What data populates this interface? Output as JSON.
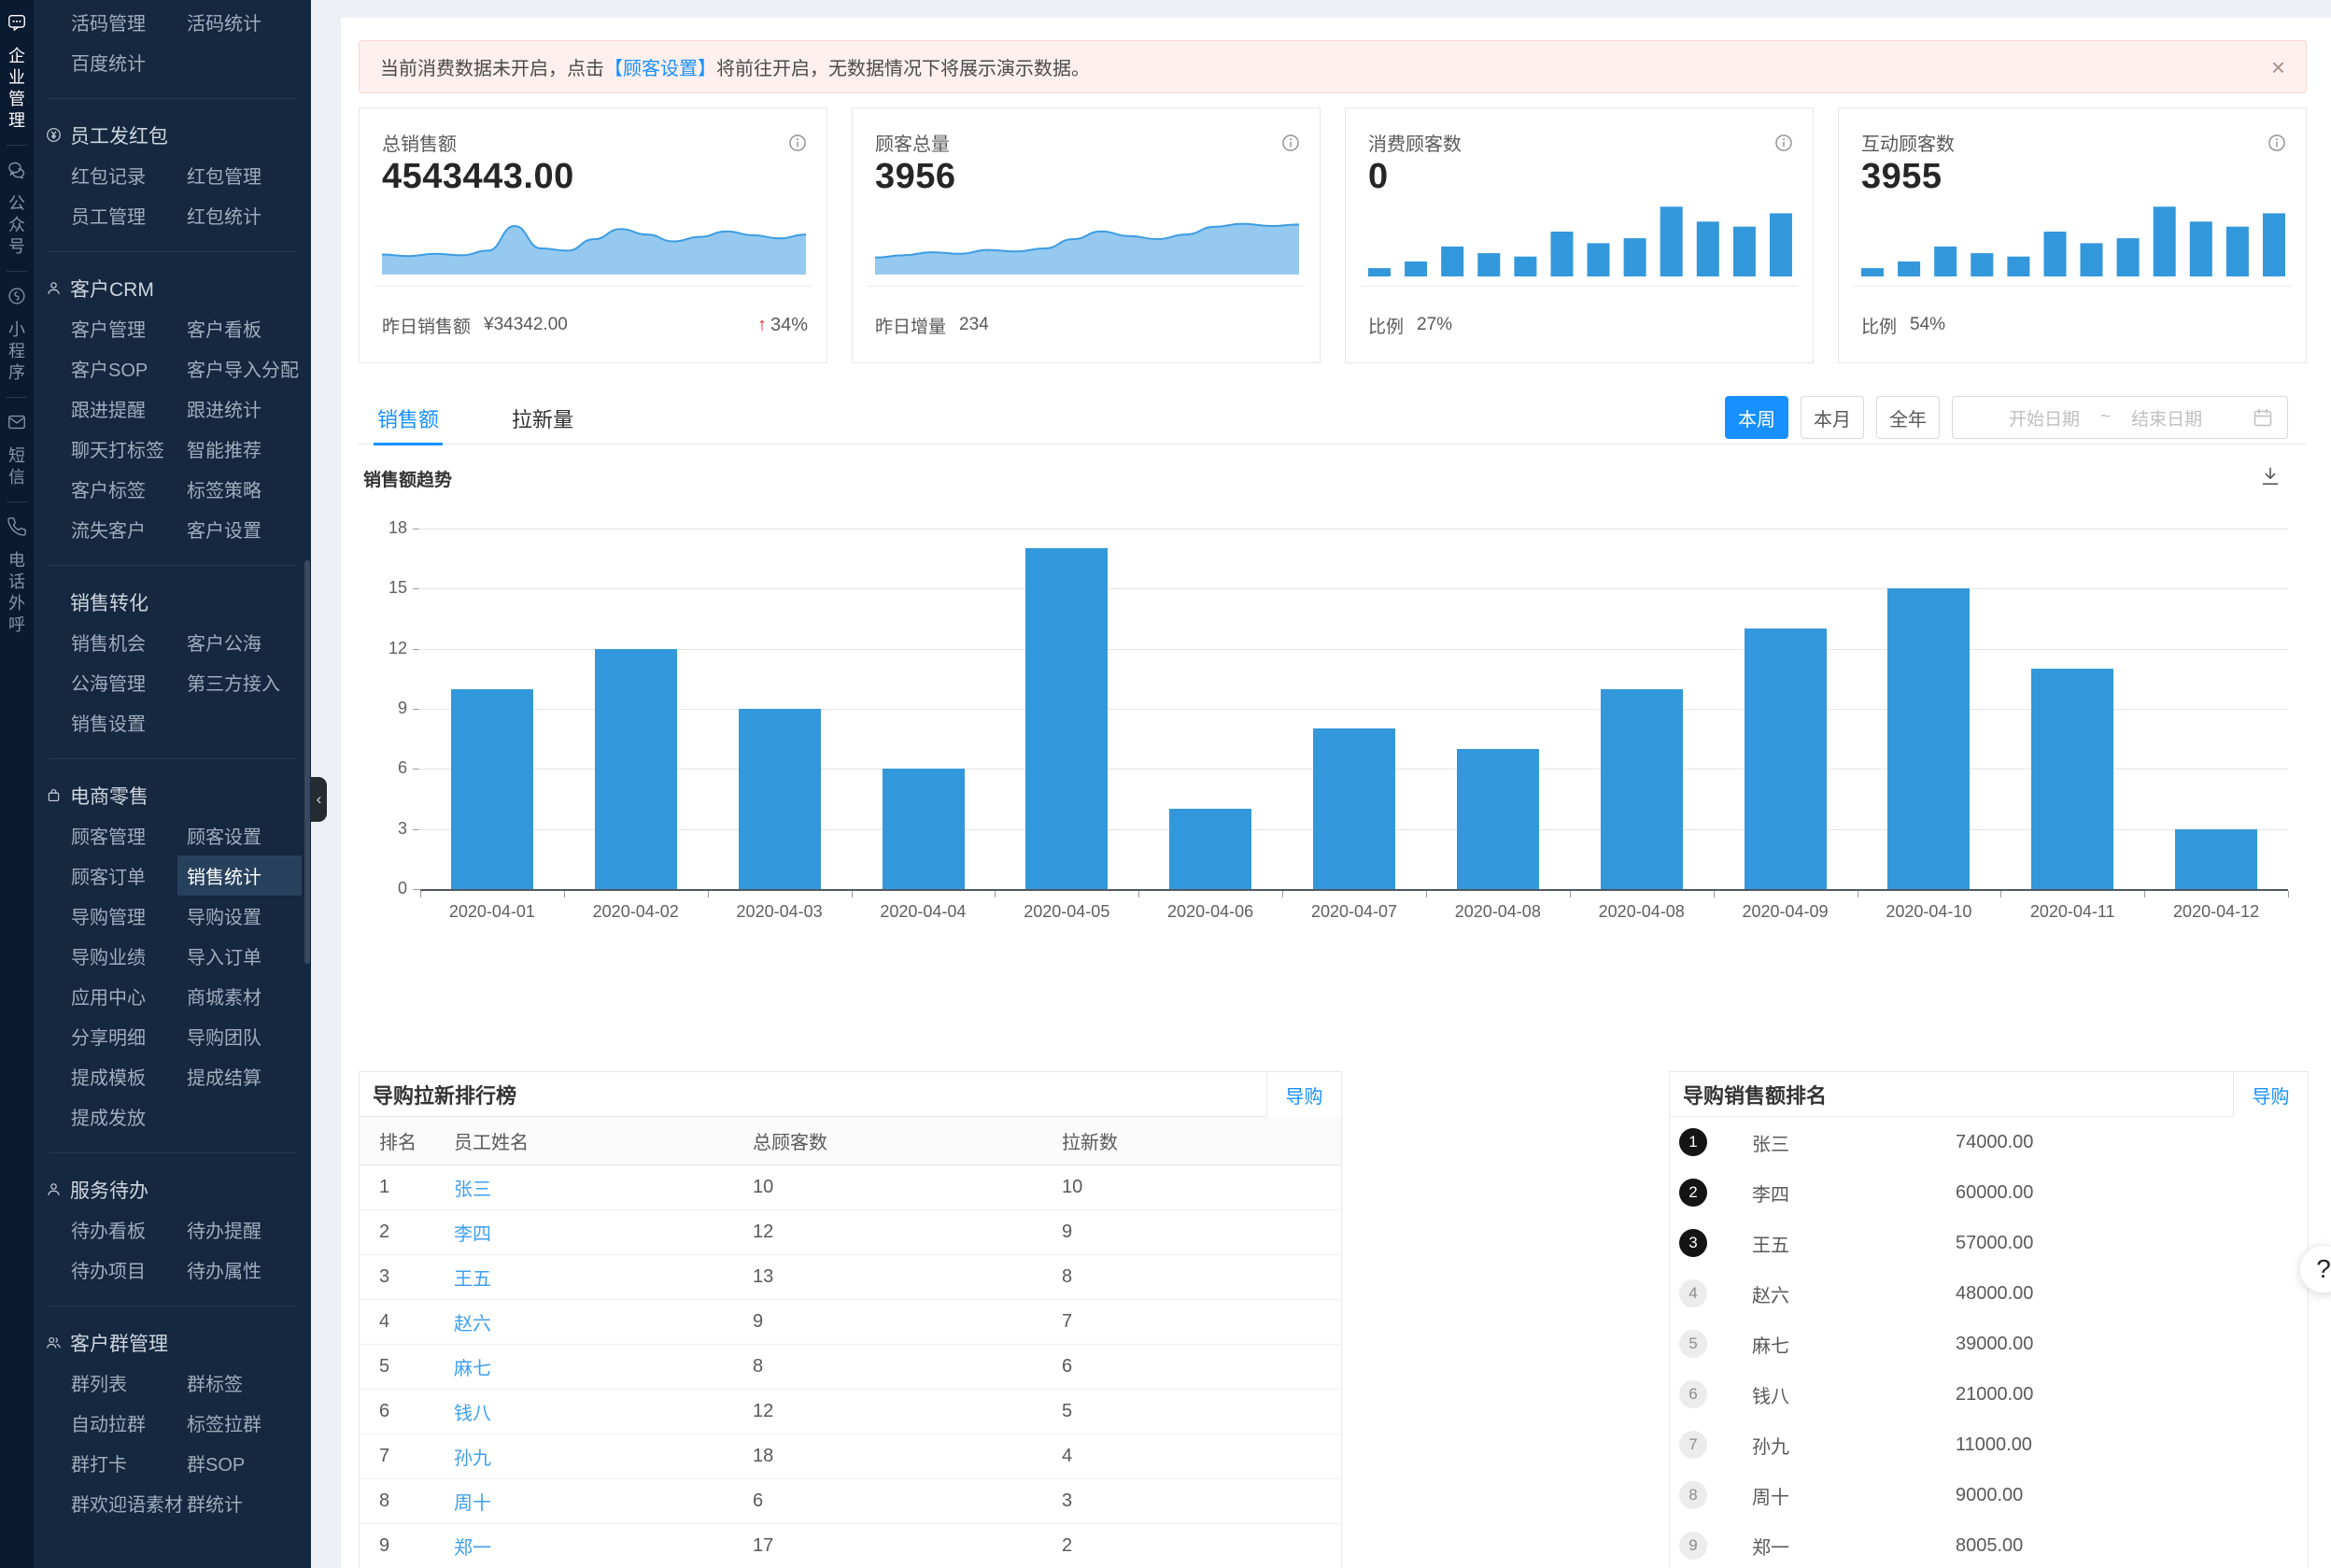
{
  "colors": {
    "primary": "#1890ff",
    "bar": "#3398db",
    "up_red": "#f5222d",
    "banner_bg": "#fdf0ee",
    "link": "#3e9ff0"
  },
  "rail": {
    "items": [
      {
        "label": "企业管理",
        "icon": "chat-dots-icon",
        "active": true
      },
      {
        "label": "公众号",
        "icon": "wechat-icon",
        "active": false
      },
      {
        "label": "小程序",
        "icon": "miniprogram-icon",
        "active": false
      },
      {
        "label": "短信",
        "icon": "mail-icon",
        "active": false
      },
      {
        "label": "电话外呼",
        "icon": "phone-icon",
        "active": false
      }
    ]
  },
  "sidebar": {
    "active_item": "销售统计",
    "groups": [
      {
        "title": "",
        "icon": "",
        "rows": [
          [
            "活码管理",
            "活码统计"
          ],
          [
            "百度统计",
            ""
          ]
        ]
      },
      {
        "title": "员工发红包",
        "icon": "coin-icon",
        "rows": [
          [
            "红包记录",
            "红包管理"
          ],
          [
            "员工管理",
            "红包统计"
          ]
        ]
      },
      {
        "title": "客户CRM",
        "icon": "user-icon",
        "rows": [
          [
            "客户管理",
            "客户看板"
          ],
          [
            "客户SOP",
            "客户导入分配"
          ],
          [
            "跟进提醒",
            "跟进统计"
          ],
          [
            "聊天打标签",
            "智能推荐"
          ],
          [
            "客户标签",
            "标签策略"
          ],
          [
            "流失客户",
            "客户设置"
          ]
        ]
      },
      {
        "title": "销售转化",
        "icon": "",
        "rows": [
          [
            "销售机会",
            "客户公海"
          ],
          [
            "公海管理",
            "第三方接入"
          ],
          [
            "销售设置",
            ""
          ]
        ]
      },
      {
        "title": "电商零售",
        "icon": "bag-icon",
        "rows": [
          [
            "顾客管理",
            "顾客设置"
          ],
          [
            "顾客订单",
            "销售统计"
          ],
          [
            "导购管理",
            "导购设置"
          ],
          [
            "导购业绩",
            "导入订单"
          ],
          [
            "应用中心",
            "商城素材"
          ],
          [
            "分享明细",
            "导购团队"
          ],
          [
            "提成模板",
            "提成结算"
          ],
          [
            "提成发放",
            ""
          ]
        ]
      },
      {
        "title": "服务待办",
        "icon": "user-icon",
        "rows": [
          [
            "待办看板",
            "待办提醒"
          ],
          [
            "待办项目",
            "待办属性"
          ]
        ]
      },
      {
        "title": "客户群管理",
        "icon": "users-icon",
        "rows": [
          [
            "群列表",
            "群标签"
          ],
          [
            "自动拉群",
            "标签拉群"
          ],
          [
            "群打卡",
            "群SOP"
          ],
          [
            "群欢迎语素材",
            "群统计"
          ]
        ]
      }
    ]
  },
  "banner": {
    "text_before": "当前消费数据未开启，点击",
    "link_text": "【顾客设置】",
    "text_after": "将前往开启，无数据情况下将展示演示数据。",
    "close_label": "×"
  },
  "stat_cards": [
    {
      "title": "总销售额",
      "value": "4543443.00",
      "footer_label": "昨日销售额",
      "footer_value": "¥34342.00",
      "trend": "34%",
      "trend_dir": "up",
      "chart_ref": 1
    },
    {
      "title": "顾客总量",
      "value": "3956",
      "footer_label": "昨日增量",
      "footer_value": "234",
      "chart_ref": 2
    },
    {
      "title": "消费顾客数",
      "value": "0",
      "footer_label": "比例",
      "footer_value": "27%",
      "chart_ref": 3
    },
    {
      "title": "互动顾客数",
      "value": "3955",
      "footer_label": "比例",
      "footer_value": "54%",
      "chart_ref": 4
    }
  ],
  "toolbar": {
    "tabs": [
      "销售额",
      "拉新量"
    ],
    "active_tab": 0,
    "periods": [
      "本周",
      "本月",
      "全年"
    ],
    "active_period": 0,
    "date_start_placeholder": "开始日期",
    "date_separator": "~",
    "date_end_placeholder": "结束日期"
  },
  "chart_data": [
    {
      "id": "sales-trend",
      "type": "bar",
      "title": "销售额趋势",
      "categories": [
        "2020-04-01",
        "2020-04-02",
        "2020-04-03",
        "2020-04-04",
        "2020-04-05",
        "2020-04-06",
        "2020-04-07",
        "2020-04-08",
        "2020-04-08",
        "2020-04-09",
        "2020-04-10",
        "2020-04-11",
        "2020-04-12"
      ],
      "values": [
        10,
        12,
        9,
        6,
        17,
        4,
        8,
        7,
        10,
        13,
        15,
        11,
        3
      ],
      "xlabel": "",
      "ylabel": "",
      "ylim": [
        0,
        18
      ],
      "yticks": [
        0,
        3,
        6,
        9,
        12,
        15,
        18
      ],
      "bar_color": "#3398db",
      "grid": true,
      "legend": "none"
    },
    {
      "id": "total-sales-sparkline",
      "type": "area",
      "values": [
        2.6,
        2.4,
        2.7,
        2.5,
        3.1,
        6.3,
        3.4,
        3.1,
        4.6,
        5.9,
        5.2,
        4.3,
        4.9,
        5.6,
        5.1,
        4.7,
        5.2
      ],
      "ymax": 8,
      "color": "#7bbcec"
    },
    {
      "id": "customer-total-sparkline",
      "type": "area",
      "values": [
        2.2,
        2.5,
        2.9,
        2.7,
        3.2,
        3.0,
        3.4,
        4.6,
        5.6,
        5.0,
        4.6,
        5.2,
        6.2,
        6.6,
        6.3,
        6.5
      ],
      "ymax": 8,
      "color": "#7bbcec"
    },
    {
      "id": "consume-customers-minibars",
      "type": "bar",
      "values": [
        1,
        1.8,
        3.6,
        2.8,
        2.4,
        5.4,
        4.0,
        4.6,
        8.4,
        6.6,
        6.0,
        7.6
      ],
      "ymax": 9,
      "color": "#3398db"
    },
    {
      "id": "interact-customers-minibars",
      "type": "bar",
      "values": [
        1,
        1.8,
        3.6,
        2.8,
        2.4,
        5.4,
        4.0,
        4.6,
        8.4,
        6.6,
        6.0,
        7.6
      ],
      "ymax": 9,
      "color": "#3398db"
    }
  ],
  "tables": {
    "new_rank": {
      "title": "导购拉新排行榜",
      "tab_label": "导购",
      "headers": [
        "排名",
        "员工姓名",
        "总顾客数",
        "拉新数"
      ],
      "rows": [
        [
          "1",
          "张三",
          "10",
          "10"
        ],
        [
          "2",
          "李四",
          "12",
          "9"
        ],
        [
          "3",
          "王五",
          "13",
          "8"
        ],
        [
          "4",
          "赵六",
          "9",
          "7"
        ],
        [
          "5",
          "麻七",
          "8",
          "6"
        ],
        [
          "6",
          "钱八",
          "12",
          "5"
        ],
        [
          "7",
          "孙九",
          "18",
          "4"
        ],
        [
          "8",
          "周十",
          "6",
          "3"
        ],
        [
          "9",
          "郑一",
          "17",
          "2"
        ]
      ]
    },
    "sales_rank": {
      "title": "导购销售额排名",
      "tab_label": "导购",
      "rows": [
        [
          "1",
          "张三",
          "74000.00"
        ],
        [
          "2",
          "李四",
          "60000.00"
        ],
        [
          "3",
          "王五",
          "57000.00"
        ],
        [
          "4",
          "赵六",
          "48000.00"
        ],
        [
          "5",
          "麻七",
          "39000.00"
        ],
        [
          "6",
          "钱八",
          "21000.00"
        ],
        [
          "7",
          "孙九",
          "11000.00"
        ],
        [
          "8",
          "周十",
          "9000.00"
        ],
        [
          "9",
          "郑一",
          "8005.00"
        ]
      ]
    }
  },
  "help_button": {
    "label": "?"
  }
}
